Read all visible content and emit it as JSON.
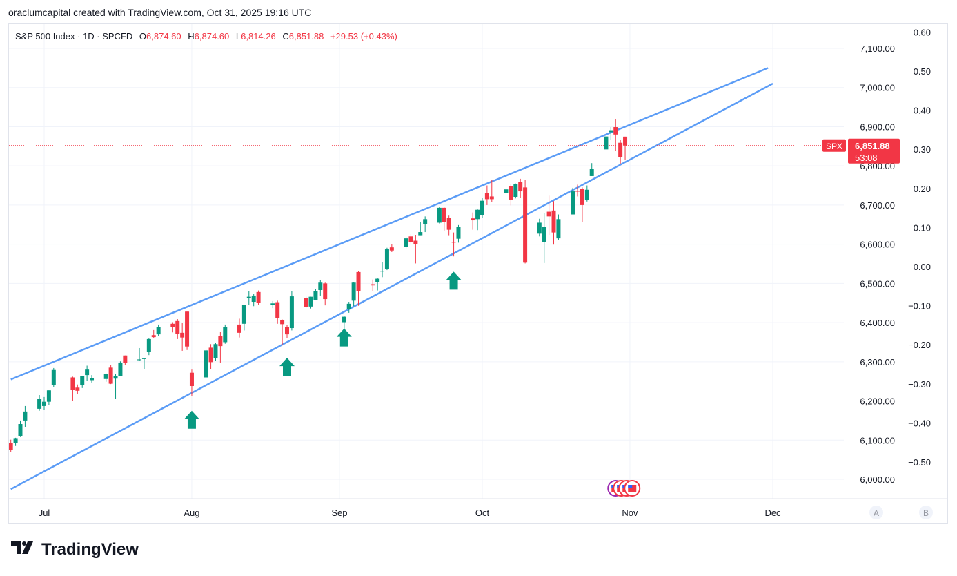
{
  "header": {
    "text": "oraclumcapital created with TradingView.com, Oct 31, 2025 19:16 UTC"
  },
  "legend": {
    "symbol": "S&P 500 Index · 1D · SPCFD",
    "o_label": "O",
    "o_value": "6,874.60",
    "h_label": "H",
    "h_value": "6,874.60",
    "l_label": "L",
    "l_value": "6,814.26",
    "c_label": "C",
    "c_value": "6,851.88",
    "change": "+29.53 (+0.43%)"
  },
  "price_tag": {
    "symbol": "SPX",
    "price": "6,851.88",
    "countdown": "53:08"
  },
  "axis_buttons": {
    "a": "A",
    "b": "B"
  },
  "footer": {
    "brand": "TradingView"
  },
  "colors": {
    "up": "#089981",
    "down": "#f23645",
    "trendline": "#5b9cf6",
    "grid": "#f0f3fa",
    "arrow": "#089981"
  },
  "chart_data": {
    "type": "candlestick",
    "title": "S&P 500 Index · 1D · SPCFD",
    "ylim": [
      5950,
      7125
    ],
    "right_axis": {
      "ticks": [
        6000,
        6100,
        6200,
        6300,
        6400,
        6500,
        6600,
        6700,
        6800,
        6900,
        7000,
        7100
      ],
      "tick_labels": [
        "6,000.00",
        "6,100.00",
        "6,200.00",
        "6,300.00",
        "6,400.00",
        "6,500.00",
        "6,600.00",
        "6,700.00",
        "6,800.00",
        "6,900.00",
        "7,000.00",
        "7,100.00"
      ]
    },
    "far_right_axis": {
      "ylim": [
        -0.6,
        0.6
      ],
      "ticks": [
        0.6,
        0.5,
        0.4,
        0.3,
        0.2,
        0.1,
        0.0,
        -0.1,
        -0.2,
        -0.3,
        -0.4,
        -0.5
      ],
      "tick_labels": [
        "0.60",
        "0.50",
        "0.40",
        "0.30",
        "0.20",
        "0.10",
        "0.00",
        "−0.10",
        "−0.20",
        "−0.30",
        "−0.40",
        "−0.50"
      ]
    },
    "x_axis": {
      "labels": [
        "Jul",
        "Aug",
        "Sep",
        "Oct",
        "Nov",
        "Dec"
      ],
      "label_dates": [
        "2025-07-01",
        "2025-08-01",
        "2025-09-01",
        "2025-10-01",
        "2025-11-01",
        "2025-12-01"
      ]
    },
    "last_price": 6851.88,
    "candles": [
      {
        "d": "2025-06-24",
        "o": 6092,
        "h": 6101,
        "l": 6070,
        "c": 6075
      },
      {
        "d": "2025-06-25",
        "o": 6093,
        "h": 6106,
        "l": 6085,
        "c": 6105
      },
      {
        "d": "2025-06-26",
        "o": 6110,
        "h": 6150,
        "l": 6108,
        "c": 6141
      },
      {
        "d": "2025-06-27",
        "o": 6150,
        "h": 6187,
        "l": 6134,
        "c": 6173
      },
      {
        "d": "2025-06-30",
        "o": 6180,
        "h": 6215,
        "l": 6175,
        "c": 6205
      },
      {
        "d": "2025-07-01",
        "o": 6187,
        "h": 6210,
        "l": 6177,
        "c": 6198
      },
      {
        "d": "2025-07-02",
        "o": 6198,
        "h": 6227,
        "l": 6190,
        "c": 6227
      },
      {
        "d": "2025-07-03",
        "o": 6240,
        "h": 6284,
        "l": 6235,
        "c": 6279
      },
      {
        "d": "2025-07-07",
        "o": 6260,
        "h": 6262,
        "l": 6201,
        "c": 6229
      },
      {
        "d": "2025-07-08",
        "o": 6234,
        "h": 6242,
        "l": 6217,
        "c": 6226
      },
      {
        "d": "2025-07-09",
        "o": 6240,
        "h": 6264,
        "l": 6233,
        "c": 6263
      },
      {
        "d": "2025-07-10",
        "o": 6266,
        "h": 6290,
        "l": 6252,
        "c": 6280
      },
      {
        "d": "2025-07-11",
        "o": 6253,
        "h": 6266,
        "l": 6247,
        "c": 6259
      },
      {
        "d": "2025-07-14",
        "o": 6256,
        "h": 6270,
        "l": 6249,
        "c": 6269
      },
      {
        "d": "2025-07-15",
        "o": 6285,
        "h": 6292,
        "l": 6243,
        "c": 6244
      },
      {
        "d": "2025-07-16",
        "o": 6257,
        "h": 6269,
        "l": 6205,
        "c": 6264
      },
      {
        "d": "2025-07-17",
        "o": 6264,
        "h": 6301,
        "l": 6264,
        "c": 6298
      },
      {
        "d": "2025-07-18",
        "o": 6316,
        "h": 6316,
        "l": 6291,
        "c": 6297
      },
      {
        "d": "2025-07-21",
        "o": 6304,
        "h": 6335,
        "l": 6303,
        "c": 6306
      },
      {
        "d": "2025-07-22",
        "o": 6307,
        "h": 6310,
        "l": 6282,
        "c": 6309
      },
      {
        "d": "2025-07-23",
        "o": 6326,
        "h": 6360,
        "l": 6317,
        "c": 6358
      },
      {
        "d": "2025-07-24",
        "o": 6368,
        "h": 6381,
        "l": 6360,
        "c": 6363
      },
      {
        "d": "2025-07-25",
        "o": 6370,
        "h": 6395,
        "l": 6366,
        "c": 6389
      },
      {
        "d": "2025-07-28",
        "o": 6397,
        "h": 6401,
        "l": 6375,
        "c": 6389
      },
      {
        "d": "2025-07-29",
        "o": 6404,
        "h": 6409,
        "l": 6358,
        "c": 6371
      },
      {
        "d": "2025-07-30",
        "o": 6374,
        "h": 6400,
        "l": 6328,
        "c": 6362
      },
      {
        "d": "2025-07-31",
        "o": 6428,
        "h": 6428,
        "l": 6330,
        "c": 6339
      },
      {
        "d": "2025-08-01",
        "o": 6272,
        "h": 6280,
        "l": 6212,
        "c": 6238
      },
      {
        "d": "2025-08-04",
        "o": 6260,
        "h": 6330,
        "l": 6260,
        "c": 6329
      },
      {
        "d": "2025-08-05",
        "o": 6336,
        "h": 6345,
        "l": 6282,
        "c": 6299
      },
      {
        "d": "2025-08-06",
        "o": 6309,
        "h": 6349,
        "l": 6302,
        "c": 6345
      },
      {
        "d": "2025-08-07",
        "o": 6366,
        "h": 6376,
        "l": 6298,
        "c": 6340
      },
      {
        "d": "2025-08-08",
        "o": 6350,
        "h": 6395,
        "l": 6346,
        "c": 6389
      },
      {
        "d": "2025-08-11",
        "o": 6395,
        "h": 6410,
        "l": 6362,
        "c": 6374
      },
      {
        "d": "2025-08-12",
        "o": 6397,
        "h": 6446,
        "l": 6380,
        "c": 6446
      },
      {
        "d": "2025-08-13",
        "o": 6462,
        "h": 6480,
        "l": 6445,
        "c": 6466
      },
      {
        "d": "2025-08-14",
        "o": 6453,
        "h": 6473,
        "l": 6442,
        "c": 6469
      },
      {
        "d": "2025-08-15",
        "o": 6478,
        "h": 6482,
        "l": 6445,
        "c": 6450
      },
      {
        "d": "2025-08-18",
        "o": 6445,
        "h": 6455,
        "l": 6437,
        "c": 6449
      },
      {
        "d": "2025-08-19",
        "o": 6452,
        "h": 6456,
        "l": 6397,
        "c": 6411
      },
      {
        "d": "2025-08-20",
        "o": 6406,
        "h": 6408,
        "l": 6343,
        "c": 6396
      },
      {
        "d": "2025-08-21",
        "o": 6388,
        "h": 6393,
        "l": 6360,
        "c": 6370
      },
      {
        "d": "2025-08-22",
        "o": 6386,
        "h": 6481,
        "l": 6380,
        "c": 6467
      },
      {
        "d": "2025-08-25",
        "o": 6462,
        "h": 6466,
        "l": 6438,
        "c": 6439
      },
      {
        "d": "2025-08-26",
        "o": 6441,
        "h": 6466,
        "l": 6436,
        "c": 6466
      },
      {
        "d": "2025-08-27",
        "o": 6457,
        "h": 6486,
        "l": 6457,
        "c": 6481
      },
      {
        "d": "2025-08-28",
        "o": 6483,
        "h": 6508,
        "l": 6469,
        "c": 6502
      },
      {
        "d": "2025-08-29",
        "o": 6500,
        "h": 6502,
        "l": 6444,
        "c": 6460
      },
      {
        "d": "2025-09-02",
        "o": 6401,
        "h": 6416,
        "l": 6360,
        "c": 6415
      },
      {
        "d": "2025-09-03",
        "o": 6435,
        "h": 6453,
        "l": 6425,
        "c": 6448
      },
      {
        "d": "2025-09-04",
        "o": 6456,
        "h": 6503,
        "l": 6442,
        "c": 6502
      },
      {
        "d": "2025-09-05",
        "o": 6529,
        "h": 6532,
        "l": 6443,
        "c": 6481
      },
      {
        "d": "2025-09-08",
        "o": 6498,
        "h": 6510,
        "l": 6480,
        "c": 6495
      },
      {
        "d": "2025-09-09",
        "o": 6503,
        "h": 6513,
        "l": 6482,
        "c": 6512
      },
      {
        "d": "2025-09-10",
        "o": 6531,
        "h": 6555,
        "l": 6516,
        "c": 6532
      },
      {
        "d": "2025-09-11",
        "o": 6537,
        "h": 6591,
        "l": 6534,
        "c": 6587
      },
      {
        "d": "2025-09-12",
        "o": 6592,
        "h": 6600,
        "l": 6580,
        "c": 6584
      },
      {
        "d": "2025-09-15",
        "o": 6594,
        "h": 6619,
        "l": 6589,
        "c": 6615
      },
      {
        "d": "2025-09-16",
        "o": 6620,
        "h": 6626,
        "l": 6601,
        "c": 6606
      },
      {
        "d": "2025-09-17",
        "o": 6609,
        "h": 6624,
        "l": 6551,
        "c": 6600
      },
      {
        "d": "2025-09-18",
        "o": 6623,
        "h": 6656,
        "l": 6623,
        "c": 6631
      },
      {
        "d": "2025-09-19",
        "o": 6651,
        "h": 6671,
        "l": 6631,
        "c": 6664
      },
      {
        "d": "2025-09-22",
        "o": 6655,
        "h": 6695,
        "l": 6653,
        "c": 6693
      },
      {
        "d": "2025-09-23",
        "o": 6693,
        "h": 6694,
        "l": 6635,
        "c": 6657
      },
      {
        "d": "2025-09-24",
        "o": 6668,
        "h": 6673,
        "l": 6623,
        "c": 6637
      },
      {
        "d": "2025-09-25",
        "o": 6606,
        "h": 6630,
        "l": 6569,
        "c": 6604
      },
      {
        "d": "2025-09-26",
        "o": 6614,
        "h": 6649,
        "l": 6604,
        "c": 6644
      },
      {
        "d": "2025-09-29",
        "o": 6666,
        "h": 6681,
        "l": 6637,
        "c": 6661
      },
      {
        "d": "2025-09-30",
        "o": 6664,
        "h": 6689,
        "l": 6636,
        "c": 6688
      },
      {
        "d": "2025-10-01",
        "o": 6675,
        "h": 6718,
        "l": 6667,
        "c": 6711
      },
      {
        "d": "2025-10-02",
        "o": 6731,
        "h": 6750,
        "l": 6700,
        "c": 6715
      },
      {
        "d": "2025-10-03",
        "o": 6722,
        "h": 6764,
        "l": 6707,
        "c": 6715
      },
      {
        "d": "2025-10-06",
        "o": 6730,
        "h": 6749,
        "l": 6716,
        "c": 6740
      },
      {
        "d": "2025-10-07",
        "o": 6749,
        "h": 6754,
        "l": 6699,
        "c": 6714
      },
      {
        "d": "2025-10-08",
        "o": 6721,
        "h": 6755,
        "l": 6717,
        "c": 6753
      },
      {
        "d": "2025-10-09",
        "o": 6759,
        "h": 6767,
        "l": 6719,
        "c": 6735
      },
      {
        "d": "2025-10-10",
        "o": 6745,
        "h": 6765,
        "l": 6551,
        "c": 6553
      },
      {
        "d": "2025-10-13",
        "o": 6627,
        "h": 6665,
        "l": 6620,
        "c": 6655
      },
      {
        "d": "2025-10-14",
        "o": 6605,
        "h": 6680,
        "l": 6552,
        "c": 6645
      },
      {
        "d": "2025-10-15",
        "o": 6683,
        "h": 6724,
        "l": 6624,
        "c": 6671
      },
      {
        "d": "2025-10-16",
        "o": 6686,
        "h": 6710,
        "l": 6599,
        "c": 6630
      },
      {
        "d": "2025-10-17",
        "o": 6615,
        "h": 6676,
        "l": 6610,
        "c": 6664
      },
      {
        "d": "2025-10-20",
        "o": 6676,
        "h": 6744,
        "l": 6676,
        "c": 6735
      },
      {
        "d": "2025-10-21",
        "o": 6736,
        "h": 6752,
        "l": 6722,
        "c": 6735
      },
      {
        "d": "2025-10-22",
        "o": 6741,
        "h": 6745,
        "l": 6657,
        "c": 6700
      },
      {
        "d": "2025-10-23",
        "o": 6713,
        "h": 6750,
        "l": 6709,
        "c": 6739
      },
      {
        "d": "2025-10-24",
        "o": 6774,
        "h": 6807,
        "l": 6774,
        "c": 6792
      },
      {
        "d": "2025-10-27",
        "o": 6842,
        "h": 6875,
        "l": 6842,
        "c": 6875
      },
      {
        "d": "2025-10-28",
        "o": 6886,
        "h": 6899,
        "l": 6867,
        "c": 6891
      },
      {
        "d": "2025-10-29",
        "o": 6899,
        "h": 6920,
        "l": 6838,
        "c": 6880
      },
      {
        "d": "2025-10-30",
        "o": 6859,
        "h": 6867,
        "l": 6805,
        "c": 6822
      },
      {
        "d": "2025-10-31",
        "o": 6874.6,
        "h": 6874.6,
        "l": 6814.26,
        "c": 6851.88
      }
    ],
    "trendlines": [
      {
        "name": "upper",
        "from": {
          "d": "2025-06-24",
          "y": 6255
        },
        "to": {
          "d": "2025-11-30",
          "y": 7050
        }
      },
      {
        "name": "lower",
        "from": {
          "d": "2025-06-24",
          "y": 5975
        },
        "to": {
          "d": "2025-12-01",
          "y": 7010
        }
      }
    ],
    "annotations": [
      {
        "type": "up-arrow",
        "d": "2025-08-01",
        "y": 6175
      },
      {
        "type": "up-arrow",
        "d": "2025-08-21",
        "y": 6310
      },
      {
        "type": "up-arrow",
        "d": "2025-09-02",
        "y": 6385
      },
      {
        "type": "up-arrow",
        "d": "2025-09-25",
        "y": 6530
      }
    ]
  }
}
